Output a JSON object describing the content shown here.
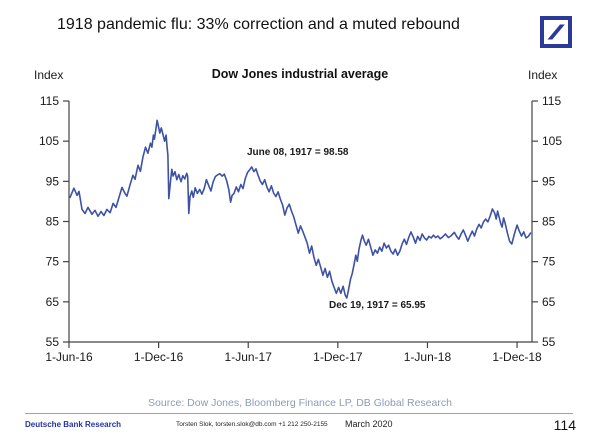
{
  "page": {
    "title": "1918 pandemic flu: 33% correction and a muted rebound"
  },
  "logo": {
    "name": "Deutsche Bank",
    "color": "#2A3A99"
  },
  "chart_data": {
    "type": "line",
    "title": "Dow Jones industrial average",
    "y_axis_label_left": "Index",
    "y_axis_label_right": "Index",
    "ylim": [
      55,
      115
    ],
    "y_ticks": [
      115,
      105,
      95,
      85,
      75,
      65,
      55
    ],
    "xlim": [
      0,
      31
    ],
    "x_unit": "months since 1-Jun-1916",
    "x_tick_positions": [
      0,
      6,
      12,
      18,
      24,
      30
    ],
    "x_tick_labels": [
      "1-Jun-16",
      "1-Dec-16",
      "1-Jun-17",
      "1-Dec-17",
      "1-Jun-18",
      "1-Dec-18"
    ],
    "grid": false,
    "legend": "none",
    "line_color": "#3D52A4",
    "axis_color": "#444444",
    "annotations": [
      {
        "text": "June 08, 1917 = 98.58",
        "x": 12.23,
        "y": 98.58
      },
      {
        "text": "Dec 19, 1917 = 65.95",
        "x": 18.6,
        "y": 65.95
      }
    ],
    "series": [
      {
        "name": "Dow Jones industrial average",
        "points": [
          [
            0.07,
            91.0
          ],
          [
            0.33,
            93.3
          ],
          [
            0.54,
            91.5
          ],
          [
            0.67,
            92.5
          ],
          [
            0.87,
            88.0
          ],
          [
            1.07,
            87.0
          ],
          [
            1.27,
            88.5
          ],
          [
            1.54,
            86.8
          ],
          [
            1.74,
            87.8
          ],
          [
            1.94,
            86.3
          ],
          [
            2.14,
            87.5
          ],
          [
            2.34,
            86.5
          ],
          [
            2.54,
            88.0
          ],
          [
            2.75,
            87.2
          ],
          [
            2.95,
            89.5
          ],
          [
            3.15,
            88.5
          ],
          [
            3.35,
            91.0
          ],
          [
            3.55,
            93.5
          ],
          [
            3.75,
            92.0
          ],
          [
            3.88,
            91.3
          ],
          [
            4.08,
            94.0
          ],
          [
            4.28,
            96.5
          ],
          [
            4.42,
            95.5
          ],
          [
            4.62,
            99.0
          ],
          [
            4.78,
            97.5
          ],
          [
            4.95,
            101.0
          ],
          [
            5.12,
            103.5
          ],
          [
            5.28,
            102.0
          ],
          [
            5.45,
            104.5
          ],
          [
            5.55,
            103.5
          ],
          [
            5.65,
            106.5
          ],
          [
            5.72,
            105.5
          ],
          [
            5.82,
            108.0
          ],
          [
            5.9,
            110.2
          ],
          [
            6.0,
            108.5
          ],
          [
            6.08,
            107.0
          ],
          [
            6.18,
            108.3
          ],
          [
            6.3,
            106.5
          ],
          [
            6.4,
            105.0
          ],
          [
            6.5,
            106.5
          ],
          [
            6.57,
            103.5
          ],
          [
            6.62,
            101.5
          ],
          [
            6.68,
            90.7
          ],
          [
            6.78,
            94.5
          ],
          [
            6.88,
            98.0
          ],
          [
            6.97,
            96.3
          ],
          [
            7.1,
            97.4
          ],
          [
            7.22,
            95.4
          ],
          [
            7.35,
            96.7
          ],
          [
            7.5,
            94.9
          ],
          [
            7.62,
            96.4
          ],
          [
            7.75,
            95.6
          ],
          [
            7.88,
            97.0
          ],
          [
            7.95,
            96.2
          ],
          [
            8.02,
            87.0
          ],
          [
            8.1,
            91.2
          ],
          [
            8.22,
            92.6
          ],
          [
            8.32,
            91.0
          ],
          [
            8.45,
            93.4
          ],
          [
            8.6,
            92.0
          ],
          [
            8.75,
            93.0
          ],
          [
            8.9,
            91.8
          ],
          [
            9.05,
            93.2
          ],
          [
            9.2,
            95.4
          ],
          [
            9.35,
            94.0
          ],
          [
            9.5,
            92.6
          ],
          [
            9.65,
            94.8
          ],
          [
            9.8,
            96.2
          ],
          [
            9.95,
            96.6
          ],
          [
            10.1,
            96.9
          ],
          [
            10.25,
            96.3
          ],
          [
            10.4,
            96.8
          ],
          [
            10.55,
            95.2
          ],
          [
            10.7,
            93.0
          ],
          [
            10.82,
            89.8
          ],
          [
            10.92,
            91.5
          ],
          [
            11.05,
            92.0
          ],
          [
            11.2,
            93.6
          ],
          [
            11.35,
            92.4
          ],
          [
            11.5,
            94.2
          ],
          [
            11.65,
            93.2
          ],
          [
            11.8,
            95.6
          ],
          [
            11.95,
            97.2
          ],
          [
            12.1,
            97.9
          ],
          [
            12.23,
            98.58
          ],
          [
            12.38,
            97.4
          ],
          [
            12.52,
            98.1
          ],
          [
            12.65,
            96.6
          ],
          [
            12.8,
            95.1
          ],
          [
            12.95,
            94.2
          ],
          [
            13.1,
            95.4
          ],
          [
            13.25,
            93.6
          ],
          [
            13.4,
            92.4
          ],
          [
            13.55,
            93.9
          ],
          [
            13.7,
            92.1
          ],
          [
            13.85,
            91.2
          ],
          [
            14.0,
            92.4
          ],
          [
            14.15,
            90.6
          ],
          [
            14.3,
            89.1
          ],
          [
            14.45,
            86.6
          ],
          [
            14.6,
            88.4
          ],
          [
            14.75,
            89.3
          ],
          [
            14.9,
            87.6
          ],
          [
            15.05,
            86.1
          ],
          [
            15.2,
            84.1
          ],
          [
            15.35,
            82.1
          ],
          [
            15.5,
            83.9
          ],
          [
            15.65,
            82.6
          ],
          [
            15.8,
            81.1
          ],
          [
            15.95,
            79.6
          ],
          [
            16.1,
            77.1
          ],
          [
            16.25,
            78.9
          ],
          [
            16.4,
            76.1
          ],
          [
            16.55,
            74.1
          ],
          [
            16.7,
            75.6
          ],
          [
            16.85,
            73.6
          ],
          [
            17.0,
            71.6
          ],
          [
            17.15,
            73.3
          ],
          [
            17.3,
            71.1
          ],
          [
            17.45,
            72.6
          ],
          [
            17.6,
            70.1
          ],
          [
            17.75,
            68.6
          ],
          [
            17.9,
            67.1
          ],
          [
            18.05,
            68.6
          ],
          [
            18.2,
            67.1
          ],
          [
            18.35,
            68.9
          ],
          [
            18.5,
            66.6
          ],
          [
            18.6,
            65.95
          ],
          [
            18.72,
            68.1
          ],
          [
            18.85,
            70.6
          ],
          [
            18.97,
            72.1
          ],
          [
            19.1,
            74.6
          ],
          [
            19.2,
            76.6
          ],
          [
            19.3,
            75.1
          ],
          [
            19.42,
            78.1
          ],
          [
            19.55,
            80.4
          ],
          [
            19.65,
            81.6
          ],
          [
            19.78,
            80.1
          ],
          [
            19.9,
            79.1
          ],
          [
            20.05,
            80.6
          ],
          [
            20.2,
            78.6
          ],
          [
            20.35,
            76.6
          ],
          [
            20.5,
            77.9
          ],
          [
            20.65,
            77.1
          ],
          [
            20.8,
            78.6
          ],
          [
            20.95,
            77.6
          ],
          [
            21.1,
            79.6
          ],
          [
            21.25,
            78.4
          ],
          [
            21.4,
            79.1
          ],
          [
            21.55,
            77.6
          ],
          [
            21.7,
            76.9
          ],
          [
            21.85,
            78.1
          ],
          [
            22.0,
            76.6
          ],
          [
            22.15,
            77.6
          ],
          [
            22.3,
            79.4
          ],
          [
            22.45,
            80.6
          ],
          [
            22.6,
            79.3
          ],
          [
            22.75,
            81.1
          ],
          [
            22.9,
            82.4
          ],
          [
            23.05,
            81.1
          ],
          [
            23.2,
            79.6
          ],
          [
            23.35,
            81.3
          ],
          [
            23.5,
            80.3
          ],
          [
            23.65,
            81.9
          ],
          [
            23.8,
            80.9
          ],
          [
            23.95,
            80.4
          ],
          [
            24.1,
            81.3
          ],
          [
            24.25,
            80.9
          ],
          [
            24.4,
            81.6
          ],
          [
            24.55,
            81.0
          ],
          [
            24.7,
            81.4
          ],
          [
            24.85,
            80.7
          ],
          [
            25.0,
            81.1
          ],
          [
            25.2,
            81.9
          ],
          [
            25.4,
            81.0
          ],
          [
            25.6,
            81.5
          ],
          [
            25.8,
            82.3
          ],
          [
            25.95,
            81.3
          ],
          [
            26.1,
            80.6
          ],
          [
            26.25,
            81.9
          ],
          [
            26.4,
            82.9
          ],
          [
            26.55,
            81.6
          ],
          [
            26.7,
            80.1
          ],
          [
            26.85,
            81.4
          ],
          [
            27.0,
            82.6
          ],
          [
            27.15,
            81.4
          ],
          [
            27.3,
            83.1
          ],
          [
            27.45,
            84.3
          ],
          [
            27.6,
            83.4
          ],
          [
            27.75,
            84.9
          ],
          [
            27.9,
            85.6
          ],
          [
            28.05,
            84.9
          ],
          [
            28.2,
            86.4
          ],
          [
            28.35,
            88.1
          ],
          [
            28.5,
            87.1
          ],
          [
            28.6,
            85.6
          ],
          [
            28.7,
            87.6
          ],
          [
            28.8,
            86.1
          ],
          [
            28.9,
            84.6
          ],
          [
            29.0,
            83.6
          ],
          [
            29.1,
            85.9
          ],
          [
            29.2,
            84.6
          ],
          [
            29.35,
            82.1
          ],
          [
            29.5,
            80.1
          ],
          [
            29.65,
            79.4
          ],
          [
            29.8,
            81.6
          ],
          [
            29.9,
            82.9
          ],
          [
            30.0,
            84.1
          ],
          [
            30.15,
            82.6
          ],
          [
            30.3,
            81.4
          ],
          [
            30.45,
            82.4
          ],
          [
            30.6,
            80.9
          ],
          [
            30.75,
            81.3
          ],
          [
            30.9,
            82.1
          ]
        ]
      }
    ]
  },
  "footer": {
    "source": "Source: Dow Jones, Bloomberg Finance LP, DB Global Research",
    "brand": "Deutsche Bank Research",
    "contact": "Torsten Slok, torsten.slok@db.com  +1 212 250-2155",
    "date": "March  2020",
    "page_number": "114"
  }
}
